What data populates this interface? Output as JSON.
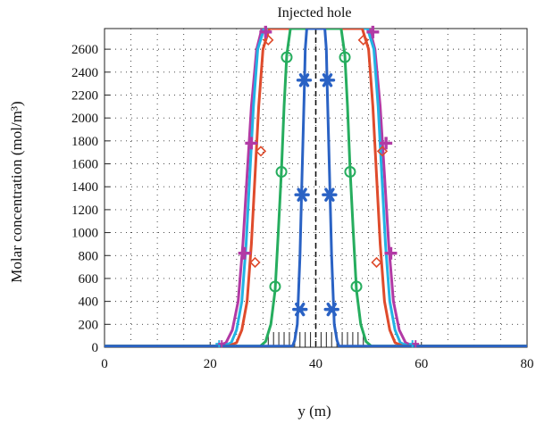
{
  "chart_data": {
    "type": "line",
    "title": "Injected hole",
    "xlabel": "y (m)",
    "ylabel": "Molar concentration (mol/m³)",
    "xlim": [
      0,
      80
    ],
    "ylim": [
      0,
      2780
    ],
    "xticks": [
      0,
      20,
      40,
      60,
      80
    ],
    "yticks": [
      0,
      200,
      400,
      600,
      800,
      1000,
      1200,
      1400,
      1600,
      1800,
      2000,
      2200,
      2400,
      2600
    ],
    "grid": "dotted",
    "injection_line_x": 40,
    "minor_xticks": [
      31,
      32,
      33,
      34,
      35,
      36,
      37,
      38,
      39,
      41,
      42,
      43,
      44,
      45,
      46,
      47,
      48,
      49
    ],
    "series": [
      {
        "color": "#2a62c4",
        "marker": "asterisk",
        "x": [
          0,
          35.6,
          36.0,
          36.5,
          37.0,
          37.4,
          37.8,
          38.0,
          38.3,
          41.7,
          42.0,
          42.2,
          42.6,
          43.0,
          43.5,
          44.0,
          44.4,
          80
        ],
        "y": [
          10,
          10,
          60,
          200,
          800,
          1500,
          2200,
          2600,
          2780,
          2780,
          2600,
          2200,
          1500,
          800,
          200,
          60,
          10,
          10
        ],
        "markers_x": [
          37.0,
          37.4,
          37.8,
          43.0,
          42.6,
          42.2
        ],
        "markers_y": [
          330,
          1330,
          2330,
          330,
          1330,
          2330
        ]
      },
      {
        "color": "#26ad5e",
        "marker": "circle",
        "x": [
          0,
          29.5,
          30.5,
          31.5,
          32.3,
          32.9,
          33.5,
          34.0,
          34.5,
          35.2,
          44.8,
          45.5,
          46.0,
          46.5,
          47.1,
          47.7,
          48.5,
          49.5,
          50.5,
          80
        ],
        "y": [
          10,
          10,
          50,
          200,
          500,
          1000,
          1550,
          2100,
          2550,
          2780,
          2780,
          2550,
          2100,
          1550,
          1000,
          500,
          200,
          50,
          10,
          10
        ],
        "markers_x": [
          32.3,
          33.5,
          34.5,
          47.7,
          46.5,
          45.5
        ],
        "markers_y": [
          530,
          1530,
          2530,
          530,
          1530,
          2530
        ]
      },
      {
        "color": "#22b3e3",
        "marker": "none",
        "x": [
          0,
          22.5,
          24.0,
          25.0,
          26.0,
          26.8,
          27.5,
          28.2,
          29.0,
          30.2,
          49.8,
          51.0,
          51.8,
          52.5,
          53.2,
          54.0,
          55.0,
          56.0,
          57.5,
          80
        ],
        "y": [
          10,
          10,
          40,
          150,
          400,
          900,
          1500,
          2100,
          2600,
          2780,
          2780,
          2600,
          2100,
          1500,
          900,
          400,
          150,
          40,
          10,
          10
        ],
        "markers_x": [],
        "markers_y": []
      },
      {
        "color": "#df4b2c",
        "marker": "diamond",
        "x": [
          0,
          23.5,
          25.0,
          26.0,
          27.0,
          27.8,
          28.5,
          29.2,
          30.0,
          31.2,
          48.8,
          50.0,
          50.8,
          51.5,
          52.2,
          53.0,
          54.0,
          55.0,
          56.5,
          80
        ],
        "y": [
          10,
          10,
          40,
          150,
          400,
          900,
          1500,
          2100,
          2600,
          2780,
          2780,
          2600,
          2100,
          1500,
          900,
          400,
          150,
          40,
          10,
          10
        ],
        "markers_x": [
          28.5,
          29.6,
          31.0,
          51.5,
          52.6,
          49.0
        ],
        "markers_y": [
          740,
          1710,
          2680,
          740,
          1710,
          2680
        ]
      },
      {
        "color": "#b23aa5",
        "marker": "plus",
        "x": [
          0,
          21.5,
          23.0,
          24.2,
          25.3,
          26.2,
          27.0,
          27.8,
          28.8,
          29.8,
          50.2,
          51.2,
          52.2,
          53.0,
          53.8,
          54.7,
          55.8,
          57.0,
          58.5,
          80
        ],
        "y": [
          10,
          10,
          40,
          150,
          400,
          900,
          1500,
          2100,
          2600,
          2780,
          2780,
          2600,
          2100,
          1500,
          900,
          400,
          150,
          40,
          10,
          10
        ],
        "markers_x": [
          26.5,
          27.8,
          30.5,
          54.2,
          53.3,
          50.8
        ],
        "markers_y": [
          820,
          1780,
          2750,
          820,
          1780,
          2750
        ]
      }
    ]
  }
}
